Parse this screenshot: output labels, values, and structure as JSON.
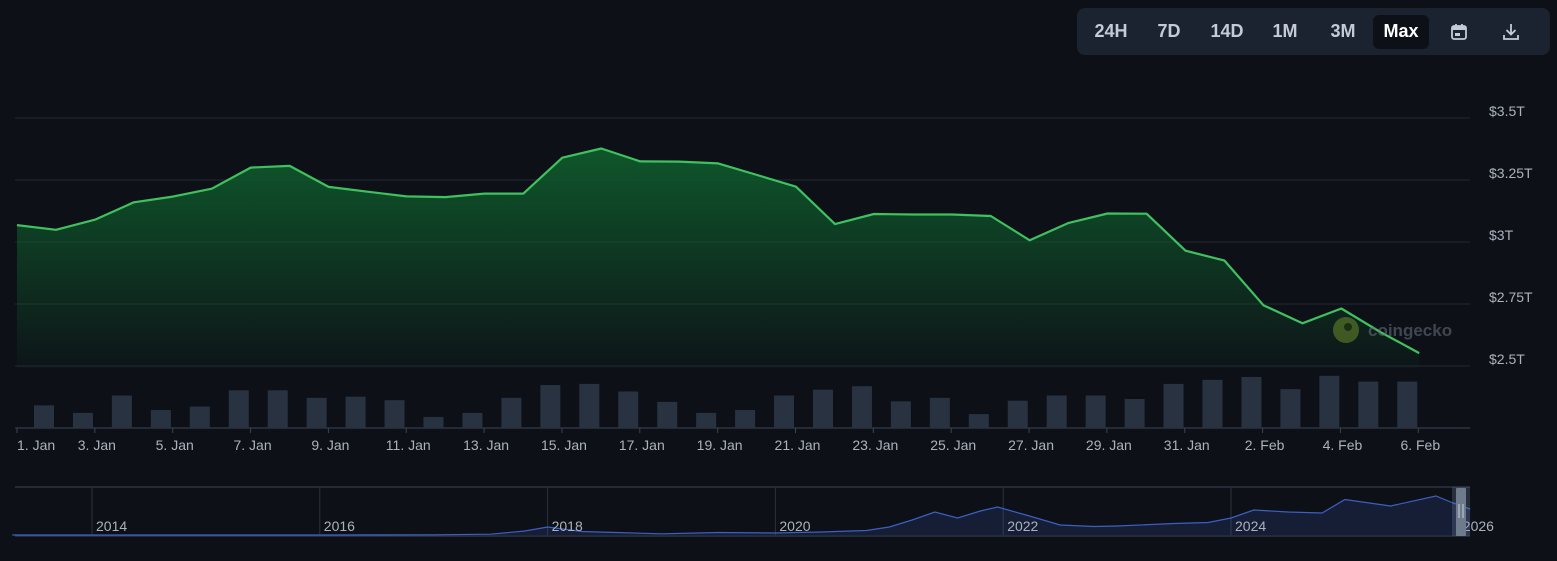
{
  "toolbar": {
    "ranges": [
      "24H",
      "7D",
      "14D",
      "1M",
      "3M",
      "Max"
    ],
    "active_range": "Max",
    "calendar_icon": "calendar-icon",
    "download_icon": "download-icon"
  },
  "watermark": {
    "text": "coingecko",
    "icon": "coingecko-logo-icon"
  },
  "colors": {
    "line": "#3fc15f",
    "area_top": "#0f5a2c",
    "volume": "#283241",
    "navigator_line": "#3d5fc4",
    "grid": "#212833",
    "axis_text": "#aab2bd"
  },
  "chart_data": [
    {
      "type": "line",
      "series": [
        {
          "values": [
            3.068,
            3.049,
            3.09,
            3.16,
            3.183,
            3.215,
            3.3,
            3.307,
            3.222,
            3.203,
            3.184,
            3.181,
            3.195,
            3.195,
            3.34,
            3.377,
            3.325,
            3.324,
            3.317,
            3.27,
            3.223,
            3.072,
            3.113,
            3.111,
            3.111,
            3.105,
            3.007,
            3.077,
            3.115,
            3.114,
            2.965,
            2.925,
            2.745,
            2.672,
            2.732,
            2.637,
            2.552
          ]
        }
      ],
      "x_ticks": [
        "1. Jan",
        "3. Jan",
        "5. Jan",
        "7. Jan",
        "9. Jan",
        "11. Jan",
        "13. Jan",
        "15. Jan",
        "17. Jan",
        "19. Jan",
        "21. Jan",
        "23. Jan",
        "25. Jan",
        "27. Jan",
        "29. Jan",
        "31. Jan",
        "2. Feb",
        "4. Feb",
        "6. Feb"
      ],
      "y_ticks": [
        "$3.5T",
        "$3.25T",
        "$3T",
        "$2.75T",
        "$2.5T"
      ],
      "y_tick_values": [
        3.5,
        3.25,
        3.0,
        2.75,
        2.5
      ],
      "ylim": [
        2.5,
        3.5
      ],
      "grid": true
    },
    {
      "type": "bar",
      "name": "volume",
      "values": [
        0.39,
        0.26,
        0.56,
        0.31,
        0.37,
        0.65,
        0.65,
        0.52,
        0.54,
        0.48,
        0.19,
        0.26,
        0.52,
        0.74,
        0.76,
        0.63,
        0.45,
        0.26,
        0.31,
        0.56,
        0.66,
        0.72,
        0.46,
        0.52,
        0.24,
        0.47,
        0.56,
        0.56,
        0.5,
        0.76,
        0.83,
        0.88,
        0.67,
        0.9,
        0.8,
        0.8
      ]
    },
    {
      "type": "area",
      "name": "navigator",
      "x": [
        2013.3,
        2014.0,
        2015.0,
        2016.0,
        2016.5,
        2017.0,
        2017.5,
        2017.8,
        2018.0,
        2018.3,
        2018.6,
        2019.0,
        2019.5,
        2020.0,
        2020.4,
        2020.8,
        2021.0,
        2021.2,
        2021.4,
        2021.6,
        2021.8,
        2021.95,
        2022.2,
        2022.5,
        2022.8,
        2023.0,
        2023.5,
        2023.8,
        2024.0,
        2024.2,
        2024.5,
        2024.8,
        2025.0,
        2025.4,
        2025.8,
        2025.95,
        2026.1
      ],
      "values": [
        0.002,
        0.004,
        0.003,
        0.005,
        0.01,
        0.02,
        0.08,
        0.4,
        0.8,
        0.35,
        0.25,
        0.12,
        0.25,
        0.2,
        0.3,
        0.45,
        0.8,
        1.5,
        2.3,
        1.7,
        2.4,
        2.8,
        2.0,
        1.0,
        0.85,
        0.9,
        1.15,
        1.25,
        1.7,
        2.5,
        2.3,
        2.2,
        3.55,
        2.9,
        3.9,
        3.2,
        2.6
      ],
      "x_ticks": [
        "2014",
        "2016",
        "2018",
        "2020",
        "2022",
        "2024",
        "2026"
      ],
      "x_tick_values": [
        2014,
        2016,
        2018,
        2020,
        2022,
        2024,
        2026
      ]
    }
  ]
}
